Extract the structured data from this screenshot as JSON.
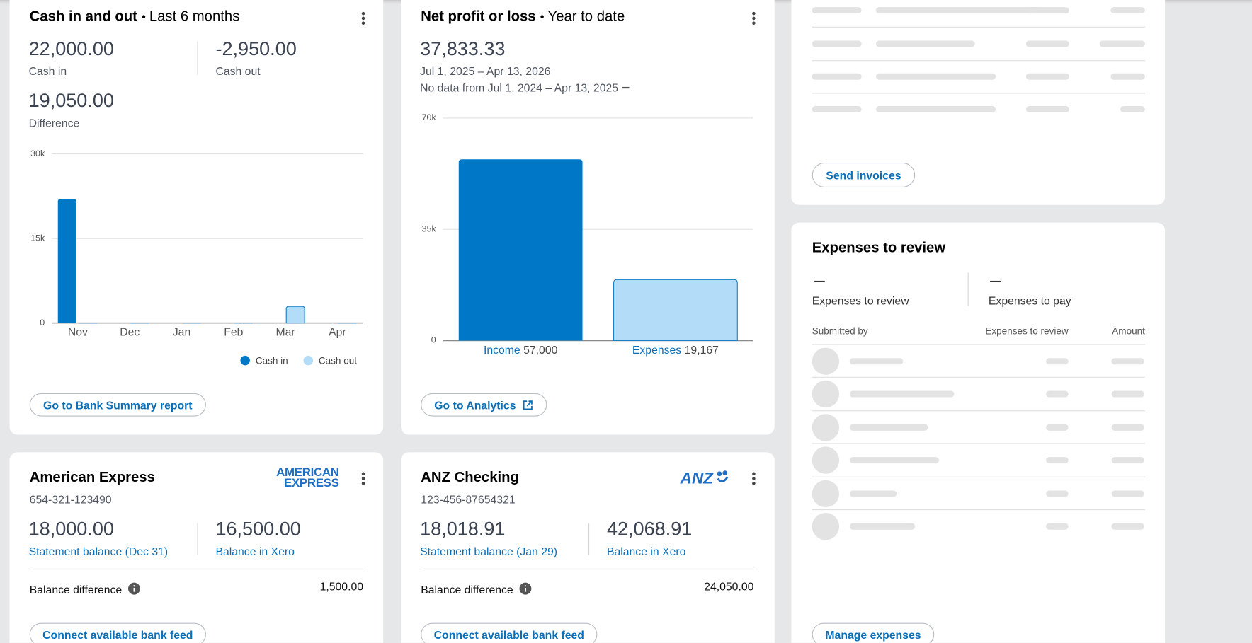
{
  "cash_in_out": {
    "title": "Cash in and out",
    "period": "Last 6 months",
    "stats": [
      {
        "value": "22,000.00",
        "label": "Cash in"
      },
      {
        "value": "-2,950.00",
        "label": "Cash out"
      },
      {
        "value": "19,050.00",
        "label": "Difference"
      }
    ],
    "button": "Go to Bank Summary report"
  },
  "net_profit": {
    "title": "Net profit or loss",
    "period": "Year to date",
    "value": "37,833.33",
    "date_range": "Jul 1, 2025 – Apr 13, 2026",
    "comparison": "No data from Jul 1, 2024 – Apr 13, 2025",
    "button": "Go to Analytics"
  },
  "invoices": {
    "button": "Send invoices"
  },
  "expenses": {
    "title": "Expenses to review",
    "stats": [
      {
        "value": "—",
        "label": "Expenses to review"
      },
      {
        "value": "—",
        "label": "Expenses to pay"
      }
    ],
    "columns": [
      "Submitted by",
      "Expenses to review",
      "Amount"
    ],
    "button": "Manage expenses"
  },
  "bank_accounts": [
    {
      "name": "American Express",
      "logo": [
        "AMERICAN",
        "EXPRESS"
      ],
      "number": "654-321-123490",
      "statement_balance": "18,000.00",
      "statement_label": "Statement balance (Dec 31)",
      "xero_balance": "16,500.00",
      "xero_label": "Balance in Xero",
      "difference_label": "Balance difference",
      "difference": "1,500.00",
      "button": "Connect available bank feed"
    },
    {
      "name": "ANZ Checking",
      "logo": [
        "ANZ"
      ],
      "number": "123-456-87654321",
      "statement_balance": "18,018.91",
      "statement_label": "Statement balance (Jan 29)",
      "xero_balance": "42,068.91",
      "xero_label": "Balance in Xero",
      "difference_label": "Balance difference",
      "difference": "24,050.00",
      "button": "Connect available bank feed"
    }
  ],
  "chart_data": [
    {
      "type": "grouped_bar",
      "categories": [
        "Nov",
        "Dec",
        "Jan",
        "Feb",
        "Mar",
        "Apr"
      ],
      "series": [
        {
          "name": "Cash in",
          "color": "#0078c8",
          "values": [
            22000,
            0,
            0,
            0,
            0,
            0
          ]
        },
        {
          "name": "Cash out",
          "color": "#b3dcf9",
          "values": [
            0,
            0,
            0,
            0,
            2950,
            0
          ]
        }
      ],
      "ylim": [
        0,
        30000
      ],
      "yticks": [
        0,
        {
          "value": 15000,
          "label": "15k"
        },
        {
          "value": 30000,
          "label": "30k"
        }
      ],
      "grid": true,
      "legend": "bottom-right"
    },
    {
      "type": "bar",
      "categories": [
        "Income",
        "Expenses"
      ],
      "values": [
        57000,
        19167
      ],
      "value_labels": [
        "57,000",
        "19,167"
      ],
      "colors": [
        "#0078c8",
        "#b3dcf9"
      ],
      "ylim": [
        0,
        70000
      ],
      "yticks": [
        0,
        {
          "value": 35000,
          "label": "35k"
        },
        {
          "value": 70000,
          "label": "70k"
        }
      ],
      "grid": true
    }
  ]
}
